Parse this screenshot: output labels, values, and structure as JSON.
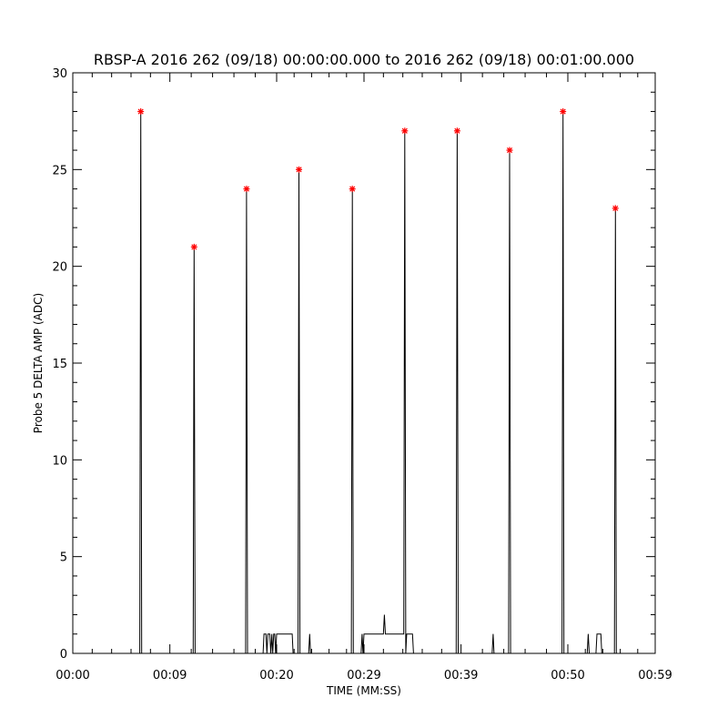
{
  "chart_data": {
    "type": "line",
    "title": "RBSP-A 2016 262 (09/18) 00:00:00.000 to 2016 262 (09/18) 00:01:00.000",
    "xlabel": "TIME (MM:SS)",
    "ylabel": "Probe 5 DELTA AMP (ADC)",
    "xlim": [
      0,
      60
    ],
    "ylim": [
      0,
      30
    ],
    "x_ticks": [
      0,
      10,
      21,
      30,
      40,
      51,
      60
    ],
    "x_tick_labels": [
      "00:00",
      "00:09",
      "00:20",
      "00:29",
      "00:39",
      "00:50",
      "00:59"
    ],
    "y_ticks": [
      0,
      5,
      10,
      15,
      20,
      25,
      30
    ],
    "y_tick_labels": [
      "0",
      "5",
      "10",
      "15",
      "20",
      "25",
      "30"
    ],
    "grid": false,
    "line_color": "#000000",
    "marker_color": "#ff0000",
    "peaks": [
      {
        "x": 7.0,
        "y": 28
      },
      {
        "x": 12.5,
        "y": 21
      },
      {
        "x": 17.9,
        "y": 24
      },
      {
        "x": 23.3,
        "y": 25
      },
      {
        "x": 28.8,
        "y": 24
      },
      {
        "x": 34.2,
        "y": 27
      },
      {
        "x": 39.6,
        "y": 27
      },
      {
        "x": 45.0,
        "y": 26
      },
      {
        "x": 50.5,
        "y": 28
      },
      {
        "x": 55.9,
        "y": 23
      }
    ],
    "series": [
      {
        "x": [
          0,
          6.9,
          7.0,
          7.1,
          12.4,
          12.5,
          12.6,
          17.8,
          17.9,
          18.0,
          19.6,
          19.7,
          19.9,
          20.0,
          20.1,
          20.3,
          20.4,
          20.5,
          20.6,
          20.7,
          20.8,
          20.9,
          21.0,
          21.1,
          21.2,
          22.6,
          22.7,
          23.2,
          23.3,
          23.4,
          24.3,
          24.4,
          24.5,
          28.7,
          28.8,
          28.9,
          29.7,
          29.8,
          29.9,
          30.0,
          32.0,
          32.1,
          32.2,
          33.0,
          34.1,
          34.2,
          34.3,
          34.4,
          34.5,
          35.0,
          35.1,
          39.5,
          39.6,
          39.7,
          43.2,
          43.3,
          43.4,
          44.9,
          45.0,
          45.1,
          50.4,
          50.5,
          50.6,
          53.0,
          53.1,
          53.2,
          53.9,
          54.0,
          54.4,
          54.5,
          55.8,
          55.9,
          56.0,
          60
        ],
        "y": [
          0,
          0,
          28,
          0,
          0,
          21,
          0,
          0,
          24,
          0,
          0,
          1,
          1,
          0,
          1,
          1,
          0,
          1,
          0,
          1,
          1,
          0,
          1,
          1,
          1,
          1,
          0,
          0,
          25,
          0,
          0,
          1,
          0,
          0,
          24,
          0,
          0,
          1,
          0,
          1,
          1,
          2,
          1,
          1,
          1,
          27,
          0,
          1,
          1,
          1,
          0,
          0,
          27,
          0,
          0,
          1,
          0,
          0,
          26,
          0,
          0,
          28,
          0,
          0,
          1,
          0,
          0,
          1,
          1,
          0,
          0,
          23,
          0,
          0
        ]
      }
    ]
  }
}
